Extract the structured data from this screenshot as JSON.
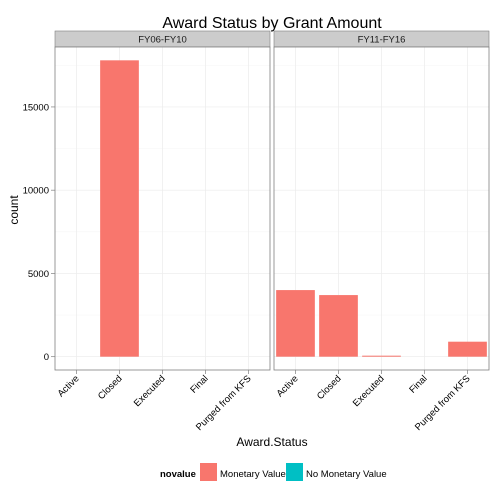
{
  "chart_data": {
    "type": "bar",
    "title": "Award Status by Grant Amount",
    "xlabel": "Award.Status",
    "ylabel": "count",
    "ylim": [
      -800,
      18600
    ],
    "yticks": [
      0,
      5000,
      10000,
      15000
    ],
    "ytick_labels": [
      "0",
      "5000",
      "10000",
      "15000"
    ],
    "categories": [
      "Active",
      "Closed",
      "Executed",
      "Final",
      "Purged from KFS"
    ],
    "grid": true,
    "legend_position": "bottom",
    "legend": {
      "title": "novalue",
      "entries": [
        {
          "label": "Monetary Value",
          "color": "#F8766D"
        },
        {
          "label": "No Monetary Value",
          "color": "#00BFC4"
        }
      ]
    },
    "panels": [
      {
        "label": "FY06-FY10",
        "series": [
          {
            "name": "Monetary Value",
            "color": "#F8766D",
            "values": [
              0,
              17800,
              0,
              0,
              0
            ]
          }
        ]
      },
      {
        "label": "FY11-FY16",
        "series": [
          {
            "name": "Monetary Value",
            "color": "#F8766D",
            "values": [
              4000,
              3700,
              60,
              0,
              900
            ]
          }
        ]
      }
    ]
  }
}
